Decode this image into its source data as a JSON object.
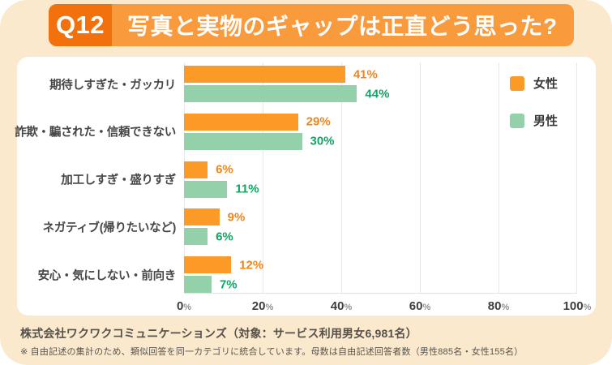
{
  "header": {
    "badge": "Q12",
    "title": "写真と実物のギャップは正直どう思った?"
  },
  "chart_data": {
    "type": "bar",
    "orientation": "horizontal",
    "title": "写真と実物のギャップは正直どう思った?",
    "categories": [
      "期待しすぎた・ガッカリ",
      "詐欺・騙された・信頼できない",
      "加工しすぎ・盛りすぎ",
      "ネガティブ(帰りたいなど)",
      "安心・気にしない・前向き"
    ],
    "series": [
      {
        "name": "女性",
        "color": "#FB9A26",
        "label_color": "#EF861B",
        "values": [
          41,
          29,
          6,
          9,
          12
        ]
      },
      {
        "name": "男性",
        "color": "#94D1AB",
        "label_color": "#0FA563",
        "values": [
          44,
          30,
          11,
          6,
          7
        ]
      }
    ],
    "value_suffix": "%",
    "xlim": [
      0,
      100
    ],
    "ticks": [
      0,
      20,
      40,
      60,
      80,
      100
    ],
    "tick_suffix": "%",
    "grid": true,
    "legend_position": "top-right"
  },
  "footer": {
    "line1": "株式会社ワクワクコミュニケーションズ（対象：サービス利用男女6,981名）",
    "line2": "※ 自由記述の集計のため、類似回答を同一カテゴリに統合しています。母数は自由記述回答者数（男性885名・女性155名）"
  },
  "colors": {
    "background": "#FBE9CE",
    "header_bar": "#F99B3C",
    "question_badge": "#F2710D",
    "card": "#FFFFFF",
    "female": "#FB9A26",
    "male": "#94D1AB",
    "female_text": "#EF861B",
    "male_text": "#0FA563"
  }
}
